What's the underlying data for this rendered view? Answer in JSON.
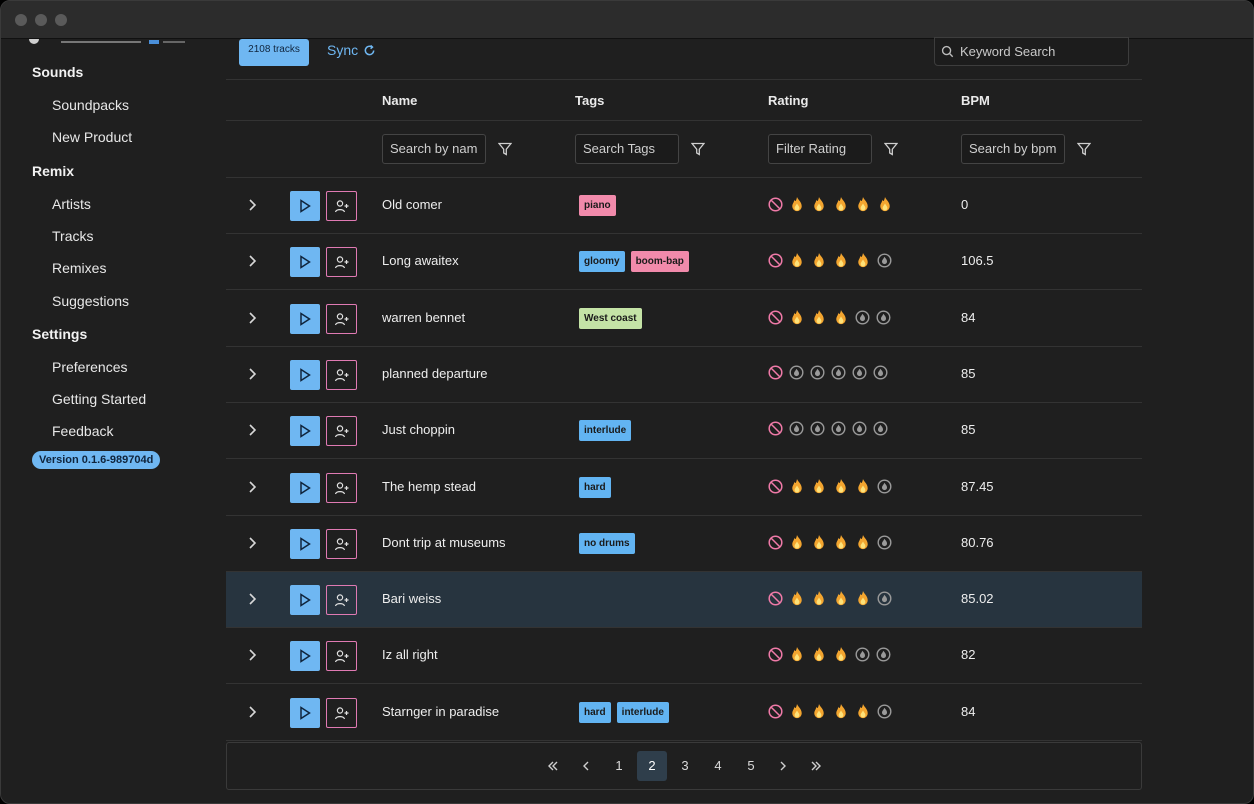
{
  "sidebar": {
    "sections": [
      {
        "title": "Sounds",
        "items": [
          {
            "label": "Soundpacks",
            "icon": "folder-icon"
          },
          {
            "label": "New Product",
            "icon": "upload-icon"
          }
        ]
      },
      {
        "title": "Remix",
        "items": [
          {
            "label": "Artists",
            "icon": "user-icon"
          },
          {
            "label": "Tracks",
            "icon": "file-icon"
          },
          {
            "label": "Remixes",
            "icon": "inbox-icon"
          },
          {
            "label": "Suggestions",
            "icon": "lightning-icon"
          }
        ]
      },
      {
        "title": "Settings",
        "items": [
          {
            "label": "Preferences",
            "icon": "wrench-icon"
          },
          {
            "label": "Getting Started",
            "icon": "info-icon"
          },
          {
            "label": "Feedback",
            "icon": "at-icon"
          }
        ]
      }
    ],
    "version": "Version 0.1.6-989704d"
  },
  "toolbar": {
    "track_count": "2108 tracks",
    "sync_label": "Sync",
    "search_placeholder": "Keyword Search"
  },
  "table": {
    "columns": {
      "name": "Name",
      "tags": "Tags",
      "rating": "Rating",
      "bpm": "BPM"
    },
    "filters": {
      "name": "Search by nam",
      "tags": "Search Tags",
      "rating": "Filter Rating",
      "bpm": "Search by bpm"
    },
    "rows": [
      {
        "name": "Old comer",
        "tags": [
          {
            "label": "piano",
            "color": "pink"
          }
        ],
        "rating": 5,
        "bpm": "0",
        "selected": false
      },
      {
        "name": "Long awaitex",
        "tags": [
          {
            "label": "gloomy",
            "color": "blue"
          },
          {
            "label": "boom-bap",
            "color": "pink"
          }
        ],
        "rating": 4,
        "bpm": "106.5",
        "selected": false
      },
      {
        "name": "warren bennet",
        "tags": [
          {
            "label": "West coast",
            "color": "green"
          }
        ],
        "rating": 3,
        "bpm": "84",
        "selected": false
      },
      {
        "name": "planned departure",
        "tags": [],
        "rating": 0,
        "bpm": "85",
        "selected": false
      },
      {
        "name": "Just choppin",
        "tags": [
          {
            "label": "interlude",
            "color": "blue"
          }
        ],
        "rating": 0,
        "bpm": "85",
        "selected": false
      },
      {
        "name": "The hemp stead",
        "tags": [
          {
            "label": "hard",
            "color": "blue"
          }
        ],
        "rating": 4,
        "bpm": "87.45",
        "selected": false
      },
      {
        "name": "Dont trip at museums",
        "tags": [
          {
            "label": "no drums",
            "color": "blue"
          }
        ],
        "rating": 4,
        "bpm": "80.76",
        "selected": false
      },
      {
        "name": "Bari weiss",
        "tags": [],
        "rating": 4,
        "bpm": "85.02",
        "selected": true
      },
      {
        "name": "Iz all right",
        "tags": [],
        "rating": 3,
        "bpm": "82",
        "selected": false
      },
      {
        "name": "Starnger in paradise",
        "tags": [
          {
            "label": "hard",
            "color": "blue"
          },
          {
            "label": "interlude",
            "color": "blue"
          }
        ],
        "rating": 4,
        "bpm": "84",
        "selected": false
      }
    ]
  },
  "pagination": {
    "pages": [
      "1",
      "2",
      "3",
      "4",
      "5"
    ],
    "current": "2"
  },
  "colors": {
    "accent": "#6fb7f2",
    "pink": "#f18aab",
    "green": "#c4e3a6",
    "selected_row": "#27343f"
  }
}
